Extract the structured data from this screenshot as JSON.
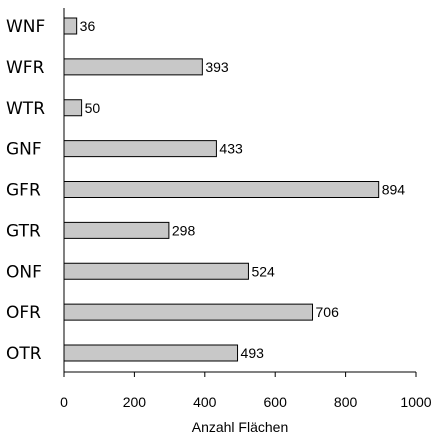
{
  "chart_data": {
    "type": "bar",
    "orientation": "horizontal",
    "categories": [
      "WNF",
      "WFR",
      "WTR",
      "GNF",
      "GFR",
      "GTR",
      "ONF",
      "OFR",
      "OTR"
    ],
    "values": [
      36,
      393,
      50,
      433,
      894,
      298,
      524,
      706,
      493
    ],
    "xlabel": "Anzahl Flächen",
    "xlim": [
      0,
      1000
    ],
    "xticks": [
      0,
      200,
      400,
      600,
      800,
      1000
    ],
    "grid": false,
    "bar_color": "#c8c8c8",
    "data_labels": true
  }
}
